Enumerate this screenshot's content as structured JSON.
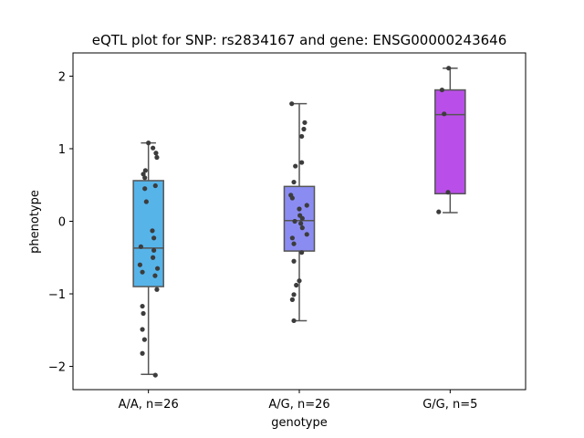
{
  "chart_data": {
    "type": "box",
    "title": "eQTL plot for SNP: rs2834167 and gene: ENSG00000243646",
    "xlabel": "genotype",
    "ylabel": "phenotype",
    "ylim": [
      -2.32,
      2.32
    ],
    "yticks": [
      -2,
      -1,
      0,
      1,
      2
    ],
    "ytick_labels": [
      "−2",
      "−1",
      "0",
      "1",
      "2"
    ],
    "grid": false,
    "categories": [
      "A/A, n=26",
      "A/G, n=26",
      "G/G, n=5"
    ],
    "boxes": [
      {
        "category": "A/A, n=26",
        "color": "#56b4e9",
        "q1": -0.9,
        "median": -0.37,
        "q3": 0.56,
        "whisker_low": -2.11,
        "whisker_high": 1.08
      },
      {
        "category": "A/G, n=26",
        "color": "#8b8cf2",
        "q1": -0.41,
        "median": 0.01,
        "q3": 0.48,
        "whisker_low": -1.37,
        "whisker_high": 1.62
      },
      {
        "category": "G/G, n=5",
        "color": "#b94fe8",
        "q1": 0.38,
        "median": 1.47,
        "q3": 1.81,
        "whisker_low": 0.12,
        "whisker_high": 2.11
      }
    ],
    "points": [
      {
        "category": "A/A, n=26",
        "jitter": 0.0,
        "y": 1.08
      },
      {
        "category": "A/A, n=26",
        "jitter": 0.15,
        "y": 1.01
      },
      {
        "category": "A/A, n=26",
        "jitter": 0.25,
        "y": 0.94
      },
      {
        "category": "A/A, n=26",
        "jitter": 0.28,
        "y": 0.88
      },
      {
        "category": "A/A, n=26",
        "jitter": -0.1,
        "y": 0.7
      },
      {
        "category": "A/A, n=26",
        "jitter": -0.17,
        "y": 0.65
      },
      {
        "category": "A/A, n=26",
        "jitter": -0.12,
        "y": 0.6
      },
      {
        "category": "A/A, n=26",
        "jitter": 0.23,
        "y": 0.49
      },
      {
        "category": "A/A, n=26",
        "jitter": -0.12,
        "y": 0.45
      },
      {
        "category": "A/A, n=26",
        "jitter": -0.07,
        "y": 0.27
      },
      {
        "category": "A/A, n=26",
        "jitter": 0.13,
        "y": -0.13
      },
      {
        "category": "A/A, n=26",
        "jitter": 0.18,
        "y": -0.23
      },
      {
        "category": "A/A, n=26",
        "jitter": -0.25,
        "y": -0.35
      },
      {
        "category": "A/A, n=26",
        "jitter": 0.18,
        "y": -0.4
      },
      {
        "category": "A/A, n=26",
        "jitter": 0.15,
        "y": -0.5
      },
      {
        "category": "A/A, n=26",
        "jitter": -0.28,
        "y": -0.6
      },
      {
        "category": "A/A, n=26",
        "jitter": 0.3,
        "y": -0.65
      },
      {
        "category": "A/A, n=26",
        "jitter": -0.2,
        "y": -0.7
      },
      {
        "category": "A/A, n=26",
        "jitter": 0.22,
        "y": -0.75
      },
      {
        "category": "A/A, n=26",
        "jitter": 0.28,
        "y": -0.94
      },
      {
        "category": "A/A, n=26",
        "jitter": -0.2,
        "y": -1.17
      },
      {
        "category": "A/A, n=26",
        "jitter": -0.17,
        "y": -1.27
      },
      {
        "category": "A/A, n=26",
        "jitter": -0.2,
        "y": -1.49
      },
      {
        "category": "A/A, n=26",
        "jitter": -0.13,
        "y": -1.63
      },
      {
        "category": "A/A, n=26",
        "jitter": -0.2,
        "y": -1.82
      },
      {
        "category": "A/A, n=26",
        "jitter": 0.23,
        "y": -2.12
      },
      {
        "category": "A/G, n=26",
        "jitter": -0.25,
        "y": 1.62
      },
      {
        "category": "A/G, n=26",
        "jitter": 0.18,
        "y": 1.36
      },
      {
        "category": "A/G, n=26",
        "jitter": 0.15,
        "y": 1.27
      },
      {
        "category": "A/G, n=26",
        "jitter": 0.08,
        "y": 1.17
      },
      {
        "category": "A/G, n=26",
        "jitter": 0.08,
        "y": 0.81
      },
      {
        "category": "A/G, n=26",
        "jitter": -0.13,
        "y": 0.76
      },
      {
        "category": "A/G, n=26",
        "jitter": -0.18,
        "y": 0.54
      },
      {
        "category": "A/G, n=26",
        "jitter": -0.28,
        "y": 0.36
      },
      {
        "category": "A/G, n=26",
        "jitter": -0.23,
        "y": 0.32
      },
      {
        "category": "A/G, n=26",
        "jitter": 0.25,
        "y": 0.22
      },
      {
        "category": "A/G, n=26",
        "jitter": 0.0,
        "y": 0.17
      },
      {
        "category": "A/G, n=26",
        "jitter": 0.02,
        "y": 0.08
      },
      {
        "category": "A/G, n=26",
        "jitter": 0.1,
        "y": 0.04
      },
      {
        "category": "A/G, n=26",
        "jitter": -0.15,
        "y": 0.0
      },
      {
        "category": "A/G, n=26",
        "jitter": 0.05,
        "y": -0.03
      },
      {
        "category": "A/G, n=26",
        "jitter": 0.1,
        "y": -0.09
      },
      {
        "category": "A/G, n=26",
        "jitter": 0.25,
        "y": -0.18
      },
      {
        "category": "A/G, n=26",
        "jitter": -0.23,
        "y": -0.23
      },
      {
        "category": "A/G, n=26",
        "jitter": -0.18,
        "y": -0.31
      },
      {
        "category": "A/G, n=26",
        "jitter": 0.08,
        "y": -0.43
      },
      {
        "category": "A/G, n=26",
        "jitter": -0.18,
        "y": -0.55
      },
      {
        "category": "A/G, n=26",
        "jitter": 0.0,
        "y": -0.82
      },
      {
        "category": "A/G, n=26",
        "jitter": -0.1,
        "y": -0.88
      },
      {
        "category": "A/G, n=26",
        "jitter": -0.18,
        "y": -1.01
      },
      {
        "category": "A/G, n=26",
        "jitter": -0.23,
        "y": -1.08
      },
      {
        "category": "A/G, n=26",
        "jitter": -0.18,
        "y": -1.37
      },
      {
        "category": "G/G, n=5",
        "jitter": -0.05,
        "y": 2.11
      },
      {
        "category": "G/G, n=5",
        "jitter": -0.27,
        "y": 1.81
      },
      {
        "category": "G/G, n=5",
        "jitter": -0.2,
        "y": 1.48
      },
      {
        "category": "G/G, n=5",
        "jitter": -0.07,
        "y": 0.4
      },
      {
        "category": "G/G, n=5",
        "jitter": -0.38,
        "y": 0.13
      }
    ],
    "styles": {
      "point_color": "#3c3c3c",
      "line_color": "#555555",
      "frame_color": "#000000"
    }
  }
}
